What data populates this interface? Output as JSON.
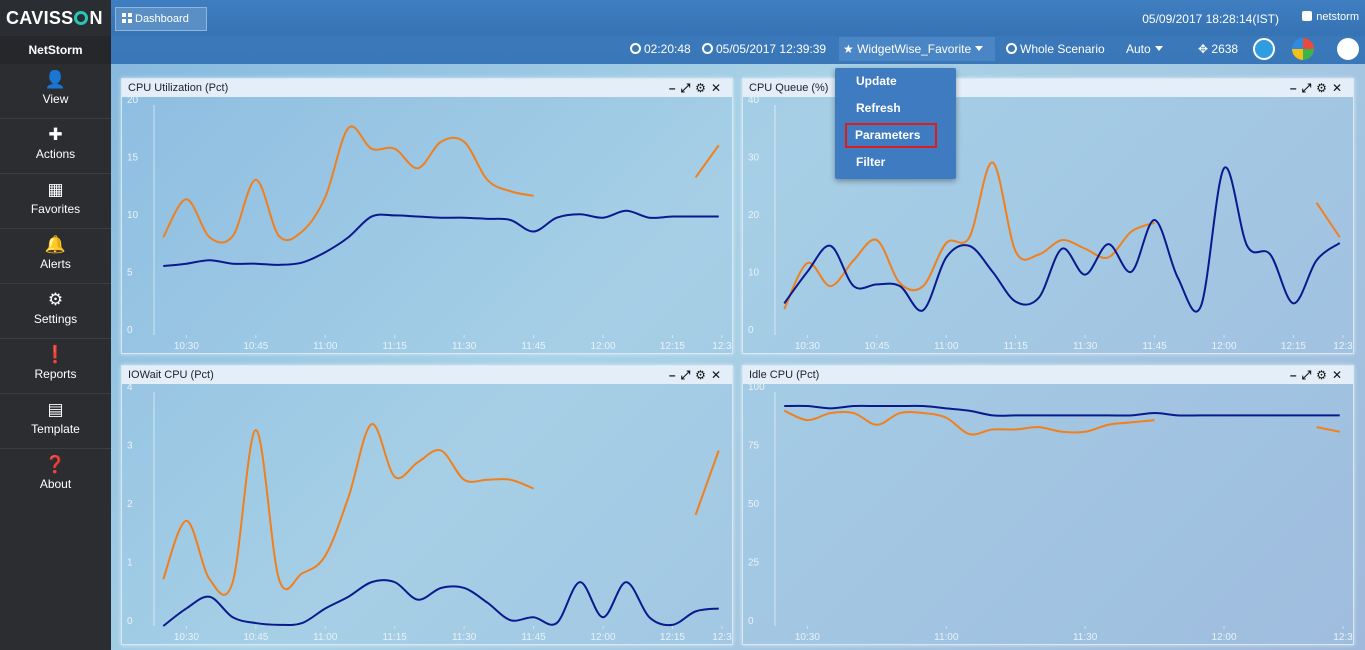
{
  "header": {
    "brand": "CAVISS",
    "brand_suffix": "N",
    "tab_label": "Dashboard",
    "datetime": "05/09/2017 18:28:14(IST)",
    "user": "netstorm"
  },
  "toolbar": {
    "elapsed": "02:20:48",
    "start_time": "05/05/2017 12:39:39",
    "favorite": "WidgetWise_Favorite",
    "scenario": "Whole Scenario",
    "refresh_mode": "Auto",
    "count": "2638"
  },
  "sidebar": {
    "title": "NetStorm",
    "items": [
      {
        "label": "View",
        "icon": "user-icon"
      },
      {
        "label": "Actions",
        "icon": "puzzle-icon"
      },
      {
        "label": "Favorites",
        "icon": "grid-icon"
      },
      {
        "label": "Alerts",
        "icon": "bell-icon"
      },
      {
        "label": "Settings",
        "icon": "gear-icon"
      },
      {
        "label": "Reports",
        "icon": "alert-circle-icon"
      },
      {
        "label": "Template",
        "icon": "template-icon"
      },
      {
        "label": "About",
        "icon": "question-icon"
      }
    ]
  },
  "menu": {
    "items": [
      "Update",
      "Refresh",
      "Parameters",
      "Filter"
    ],
    "highlighted": "Parameters"
  },
  "colors": {
    "series_a": "#f07f1d",
    "series_b": "#0a1a8c"
  },
  "widgets": [
    {
      "title": "CPU Utilization (Pct)",
      "chart_data": {
        "type": "line",
        "x": [
          "10:25",
          "10:30",
          "10:35",
          "10:40",
          "10:45",
          "10:50",
          "10:55",
          "11:00",
          "11:05",
          "11:10",
          "11:15",
          "11:20",
          "11:25",
          "11:30",
          "11:35",
          "11:40",
          "11:45",
          "11:50",
          "11:55",
          "12:00",
          "12:05",
          "12:10",
          "12:15",
          "12:20",
          "12:25"
        ],
        "xticks": [
          "10:30",
          "10:45",
          "11:00",
          "11:15",
          "11:30",
          "11:45",
          "12:00",
          "12:15",
          "12:3"
        ],
        "ylim": [
          0,
          20
        ],
        "yticks": [
          0,
          5,
          10,
          15,
          20
        ],
        "series": [
          {
            "color": "orange",
            "values": [
              8.5,
              11.8,
              8.5,
              8.6,
              13.5,
              8.6,
              9.0,
              12.0,
              18.0,
              16.2,
              16.2,
              14.5,
              16.8,
              16.8,
              13.5,
              12.5,
              12.1,
              null,
              null,
              null,
              null,
              null,
              null,
              13.7,
              16.5
            ]
          },
          {
            "color": "navy",
            "values": [
              6.0,
              6.2,
              6.5,
              6.2,
              6.2,
              6.1,
              6.3,
              7.2,
              8.5,
              10.3,
              10.4,
              10.3,
              10.2,
              10.2,
              10.1,
              10.0,
              9.0,
              10.2,
              10.5,
              10.2,
              10.8,
              10.2,
              10.3,
              10.3,
              10.3
            ]
          }
        ]
      }
    },
    {
      "title": "CPU Queue (%)",
      "chart_data": {
        "type": "line",
        "x": [
          "10:25",
          "10:30",
          "10:35",
          "10:40",
          "10:45",
          "10:50",
          "10:55",
          "11:00",
          "11:05",
          "11:10",
          "11:15",
          "11:20",
          "11:25",
          "11:30",
          "11:35",
          "11:40",
          "11:45",
          "11:50",
          "11:55",
          "12:00",
          "12:05",
          "12:10",
          "12:15",
          "12:20",
          "12:25"
        ],
        "xticks": [
          "10:30",
          "10:45",
          "11:00",
          "11:15",
          "11:30",
          "11:45",
          "12:00",
          "12:15",
          "12:3"
        ],
        "ylim": [
          0,
          40
        ],
        "yticks": [
          0,
          10,
          20,
          30,
          40
        ],
        "series": [
          {
            "color": "orange",
            "values": [
              4.5,
              12.5,
              8.5,
              13.0,
              16.5,
              9.0,
              8.5,
              16.0,
              17.0,
              30.0,
              14.5,
              14.0,
              16.5,
              15.0,
              13.5,
              18.0,
              19.5,
              null,
              null,
              null,
              null,
              null,
              null,
              23.0,
              17.0
            ]
          },
          {
            "color": "navy",
            "values": [
              5.5,
              11.0,
              15.5,
              8.5,
              8.8,
              8.5,
              4.3,
              13.5,
              15.5,
              11.0,
              5.8,
              6.5,
              15.0,
              10.5,
              15.8,
              11.0,
              20.0,
              10.0,
              5.0,
              29.0,
              15.5,
              14.0,
              5.5,
              13.0,
              16.0
            ]
          }
        ]
      }
    },
    {
      "title": "IOWait CPU (Pct)",
      "chart_data": {
        "type": "line",
        "x": [
          "10:25",
          "10:30",
          "10:35",
          "10:40",
          "10:45",
          "10:50",
          "10:55",
          "11:00",
          "11:05",
          "11:10",
          "11:15",
          "11:20",
          "11:25",
          "11:30",
          "11:35",
          "11:40",
          "11:45",
          "11:50",
          "11:55",
          "12:00",
          "12:05",
          "12:10",
          "12:15",
          "12:20",
          "12:25"
        ],
        "xticks": [
          "10:30",
          "10:45",
          "11:00",
          "11:15",
          "11:30",
          "11:45",
          "12:00",
          "12:15",
          "12:3"
        ],
        "ylim": [
          0,
          4
        ],
        "yticks": [
          0,
          1,
          2,
          3,
          4
        ],
        "series": [
          {
            "color": "orange",
            "values": [
              0.8,
              1.8,
              0.8,
              0.75,
              3.35,
              0.8,
              0.9,
              1.2,
              2.2,
              3.45,
              2.55,
              2.8,
              3.0,
              2.5,
              2.5,
              2.5,
              2.35,
              null,
              null,
              null,
              null,
              null,
              null,
              1.9,
              3.0
            ]
          },
          {
            "color": "navy",
            "values": [
              0.0,
              0.3,
              0.5,
              0.15,
              0.05,
              0.02,
              0.05,
              0.3,
              0.5,
              0.75,
              0.75,
              0.45,
              0.65,
              0.65,
              0.4,
              0.1,
              0.15,
              0.05,
              0.75,
              0.15,
              0.75,
              0.15,
              0.02,
              0.25,
              0.3
            ]
          }
        ]
      }
    },
    {
      "title": "Idle CPU (Pct)",
      "chart_data": {
        "type": "line",
        "x": [
          "10:25",
          "10:30",
          "10:35",
          "10:40",
          "10:45",
          "10:50",
          "10:55",
          "11:00",
          "11:05",
          "11:10",
          "11:15",
          "11:20",
          "11:25",
          "11:30",
          "11:35",
          "11:40",
          "11:45",
          "11:50",
          "11:55",
          "12:00",
          "12:05",
          "12:10",
          "12:15",
          "12:20",
          "12:25"
        ],
        "xticks": [
          "10:30",
          "11:00",
          "11:30",
          "12:00",
          "12:3"
        ],
        "ylim": [
          0,
          100
        ],
        "yticks": [
          0,
          25,
          50,
          75,
          100
        ],
        "series": [
          {
            "color": "orange",
            "values": [
              92,
              88,
              91,
              91,
              86,
              91,
              91,
              89,
              82,
              84,
              84,
              85,
              83,
              83,
              86,
              87,
              88,
              null,
              null,
              null,
              null,
              null,
              null,
              85,
              83
            ]
          },
          {
            "color": "navy",
            "values": [
              94,
              94,
              93,
              94,
              94,
              94,
              94,
              93,
              92,
              90,
              90,
              90,
              90,
              90,
              90,
              90,
              91,
              90,
              90,
              90,
              90,
              90,
              90,
              90,
              90
            ]
          }
        ]
      }
    }
  ]
}
